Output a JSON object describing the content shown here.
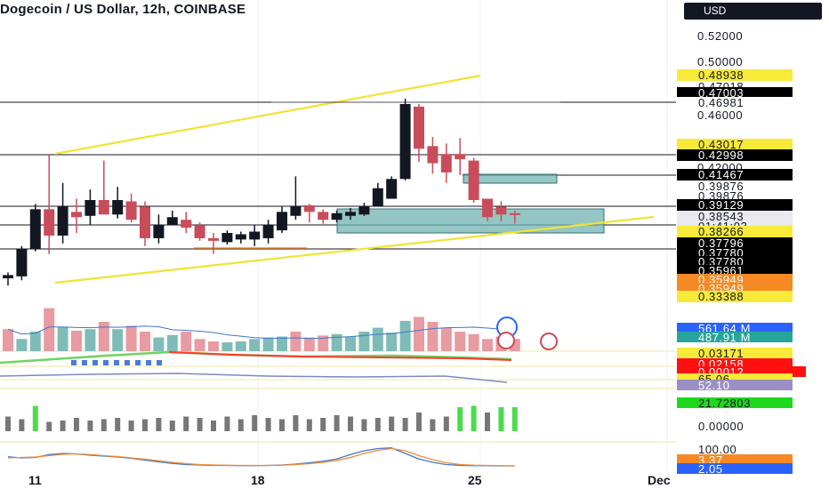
{
  "header": {
    "title": "Dogecoin / US Dollar, 12h, COINBASE",
    "currency": "USD"
  },
  "colors": {
    "up": "#131722",
    "down": "#c94c5a",
    "trendline": "#f2e234",
    "zone": "#6fb3b0",
    "volume_up": "#7fbcb8",
    "volume_down": "#e89ba2",
    "ma_line": "#3f78c9",
    "rsi_line": "#7a8bc4",
    "stoch_k": "#3f78c9",
    "stoch_d": "#f08a33",
    "bars_green": "#4cdb4c"
  },
  "chart_data": {
    "type": "candlestick",
    "title": "Dogecoin / US Dollar, 12h, COINBASE",
    "ylim": [
      0.325,
      0.535
    ],
    "y_ticks": [
      "0.52000",
      "0.50000",
      "0.46000",
      "0.42000"
    ],
    "x_ticks": [
      "11",
      "18",
      "25",
      "Dec"
    ],
    "candles": [
      {
        "o": 0.3355,
        "h": 0.34,
        "l": 0.33,
        "c": 0.338
      },
      {
        "o": 0.337,
        "h": 0.36,
        "l": 0.334,
        "c": 0.358
      },
      {
        "o": 0.358,
        "h": 0.392,
        "l": 0.356,
        "c": 0.388
      },
      {
        "o": 0.388,
        "h": 0.43,
        "l": 0.354,
        "c": 0.368
      },
      {
        "o": 0.368,
        "h": 0.408,
        "l": 0.362,
        "c": 0.39
      },
      {
        "o": 0.386,
        "h": 0.396,
        "l": 0.37,
        "c": 0.382
      },
      {
        "o": 0.383,
        "h": 0.403,
        "l": 0.376,
        "c": 0.395
      },
      {
        "o": 0.395,
        "h": 0.425,
        "l": 0.384,
        "c": 0.384
      },
      {
        "o": 0.384,
        "h": 0.405,
        "l": 0.381,
        "c": 0.395
      },
      {
        "o": 0.394,
        "h": 0.4,
        "l": 0.378,
        "c": 0.38
      },
      {
        "o": 0.39,
        "h": 0.394,
        "l": 0.36,
        "c": 0.366
      },
      {
        "o": 0.366,
        "h": 0.384,
        "l": 0.362,
        "c": 0.376
      },
      {
        "o": 0.376,
        "h": 0.387,
        "l": 0.376,
        "c": 0.382
      },
      {
        "o": 0.38,
        "h": 0.386,
        "l": 0.37,
        "c": 0.374
      },
      {
        "o": 0.376,
        "h": 0.378,
        "l": 0.364,
        "c": 0.366
      },
      {
        "o": 0.366,
        "h": 0.37,
        "l": 0.354,
        "c": 0.364
      },
      {
        "o": 0.363,
        "h": 0.372,
        "l": 0.361,
        "c": 0.37
      },
      {
        "o": 0.365,
        "h": 0.371,
        "l": 0.362,
        "c": 0.369
      },
      {
        "o": 0.365,
        "h": 0.376,
        "l": 0.36,
        "c": 0.371
      },
      {
        "o": 0.366,
        "h": 0.38,
        "l": 0.362,
        "c": 0.376
      },
      {
        "o": 0.372,
        "h": 0.39,
        "l": 0.37,
        "c": 0.386
      },
      {
        "o": 0.383,
        "h": 0.413,
        "l": 0.38,
        "c": 0.39
      },
      {
        "o": 0.391,
        "h": 0.392,
        "l": 0.378,
        "c": 0.386
      },
      {
        "o": 0.386,
        "h": 0.388,
        "l": 0.377,
        "c": 0.38
      },
      {
        "o": 0.38,
        "h": 0.387,
        "l": 0.378,
        "c": 0.385
      },
      {
        "o": 0.383,
        "h": 0.389,
        "l": 0.38,
        "c": 0.386
      },
      {
        "o": 0.384,
        "h": 0.393,
        "l": 0.383,
        "c": 0.39
      },
      {
        "o": 0.39,
        "h": 0.408,
        "l": 0.39,
        "c": 0.404
      },
      {
        "o": 0.396,
        "h": 0.413,
        "l": 0.396,
        "c": 0.411
      },
      {
        "o": 0.411,
        "h": 0.472,
        "l": 0.41,
        "c": 0.468
      },
      {
        "o": 0.466,
        "h": 0.468,
        "l": 0.424,
        "c": 0.434
      },
      {
        "o": 0.436,
        "h": 0.443,
        "l": 0.415,
        "c": 0.423
      },
      {
        "o": 0.43,
        "h": 0.438,
        "l": 0.408,
        "c": 0.416
      },
      {
        "o": 0.43,
        "h": 0.442,
        "l": 0.414,
        "c": 0.426
      },
      {
        "o": 0.425,
        "h": 0.427,
        "l": 0.393,
        "c": 0.395
      },
      {
        "o": 0.396,
        "h": 0.396,
        "l": 0.379,
        "c": 0.382
      },
      {
        "o": 0.39,
        "h": 0.394,
        "l": 0.379,
        "c": 0.384
      },
      {
        "o": 0.385,
        "h": 0.387,
        "l": 0.377,
        "c": 0.384
      }
    ],
    "volume": [
      0.45,
      0.25,
      0.4,
      0.88,
      0.5,
      0.42,
      0.45,
      0.6,
      0.45,
      0.52,
      0.4,
      0.28,
      0.33,
      0.4,
      0.25,
      0.2,
      0.18,
      0.2,
      0.25,
      0.28,
      0.3,
      0.4,
      0.28,
      0.32,
      0.35,
      0.3,
      0.4,
      0.48,
      0.38,
      0.62,
      0.7,
      0.6,
      0.48,
      0.4,
      0.35,
      0.25,
      0.3,
      0.25
    ],
    "volume_direction": [
      "d",
      "u",
      "u",
      "d",
      "u",
      "d",
      "u",
      "d",
      "u",
      "d",
      "d",
      "u",
      "u",
      "d",
      "d",
      "d",
      "u",
      "u",
      "u",
      "u",
      "u",
      "d",
      "d",
      "d",
      "u",
      "u",
      "u",
      "u",
      "u",
      "u",
      "d",
      "d",
      "d",
      "d",
      "d",
      "d",
      "d",
      "d"
    ],
    "histogram": [
      0,
      0,
      0,
      0,
      0,
      0,
      0,
      0,
      0,
      0,
      0,
      0,
      0,
      0,
      0,
      0,
      0,
      0,
      0,
      0,
      0,
      0,
      0,
      0,
      0,
      0,
      0,
      0,
      0,
      0,
      0,
      0,
      0,
      0,
      0,
      0,
      0,
      0
    ],
    "histogram_x_slots": [
      1,
      3,
      5,
      7,
      9,
      11,
      13,
      15,
      17,
      19,
      21,
      23,
      25,
      27,
      29,
      31,
      33,
      35,
      37,
      39,
      41,
      43,
      45,
      47,
      49,
      51,
      53,
      55,
      57,
      59,
      61,
      63,
      65,
      67,
      69,
      71,
      73,
      75
    ],
    "histogram_vals": [
      0.55,
      0.45,
      0.95,
      0.35,
      0.4,
      0.5,
      0.4,
      0.45,
      0.5,
      0.4,
      0.45,
      0.5,
      0.4,
      0.55,
      0.5,
      0.4,
      0.55,
      0.45,
      0.6,
      0.5,
      0.45,
      0.6,
      0.45,
      0.5,
      0.6,
      0.55,
      0.45,
      0.5,
      0.55,
      0.5,
      0.7,
      0.45,
      0.55,
      0.9,
      0.95,
      0.7,
      0.9,
      0.9
    ],
    "histogram_green": [
      false,
      false,
      true,
      false,
      false,
      false,
      false,
      false,
      false,
      false,
      false,
      false,
      false,
      false,
      false,
      false,
      false,
      false,
      false,
      false,
      false,
      false,
      false,
      false,
      false,
      false,
      false,
      false,
      false,
      false,
      false,
      false,
      false,
      true,
      true,
      false,
      true,
      true
    ],
    "stoch_k": [
      45,
      40,
      42,
      55,
      60,
      58,
      52,
      48,
      44,
      38,
      30,
      22,
      15,
      10,
      8,
      6,
      6,
      5,
      5,
      6,
      8,
      12,
      18,
      25,
      35,
      55,
      72,
      82,
      85,
      60,
      35,
      20,
      10,
      6,
      5,
      5,
      4,
      4
    ],
    "stoch_d": [
      40,
      42,
      44,
      50,
      56,
      58,
      55,
      50,
      46,
      40,
      34,
      27,
      20,
      14,
      10,
      8,
      7,
      6,
      6,
      6,
      7,
      10,
      14,
      20,
      28,
      42,
      60,
      74,
      82,
      72,
      50,
      32,
      18,
      10,
      7,
      6,
      5,
      4
    ]
  },
  "price_tags": [
    {
      "text": "0.48938",
      "bg": "#f7ea38",
      "fg": "#131722",
      "y": 0.48938
    },
    {
      "text": "0.47018",
      "bg": "#ffffff",
      "fg": "#131722",
      "y": 0.47018
    },
    {
      "text": "0.47003",
      "bg": "#000000",
      "fg": "#ffffff",
      "y": 0.47003
    },
    {
      "text": "0.46981",
      "bg": "#ffffff",
      "fg": "#131722",
      "y": 0.46981
    },
    {
      "text": "0.43017",
      "bg": "#f7ea38",
      "fg": "#131722",
      "y": 0.43017
    },
    {
      "text": "0.42998",
      "bg": "#000000",
      "fg": "#ffffff",
      "y": 0.42998
    },
    {
      "text": "0.41467",
      "bg": "#000000",
      "fg": "#ffffff",
      "y": 0.41467
    },
    {
      "text": "0.39876",
      "bg": "#ffffff",
      "fg": "#131722",
      "y": 0.39876
    },
    {
      "text": "0.39876",
      "bg": "#ffffff",
      "fg": "#131722",
      "y": 0.39876
    },
    {
      "text": "0.39129",
      "bg": "#000000",
      "fg": "#ffffff",
      "y": 0.39129
    },
    {
      "text": "0.38543",
      "bg": "#e9e9ee",
      "fg": "#131722",
      "y": 0.38543
    },
    {
      "text": "01:41:03",
      "bg": "#e9e9ee",
      "fg": "#131722",
      "y": 0.38543
    },
    {
      "text": "0.38266",
      "bg": "#f7ea38",
      "fg": "#131722",
      "y": 0.38266
    },
    {
      "text": "0.37796",
      "bg": "#000000",
      "fg": "#ffffff",
      "y": 0.37796
    },
    {
      "text": "0.37780",
      "bg": "#000000",
      "fg": "#ffffff",
      "y": 0.3778
    },
    {
      "text": "0.37780",
      "bg": "#000000",
      "fg": "#ffffff",
      "y": 0.3778
    },
    {
      "text": "0.35961",
      "bg": "#000000",
      "fg": "#ffffff",
      "y": 0.35961
    },
    {
      "text": "0.35949",
      "bg": "#f58a25",
      "fg": "#ffffff",
      "y": 0.35949
    },
    {
      "text": "0.35949",
      "bg": "#f58a25",
      "fg": "#ffffff",
      "y": 0.35949
    },
    {
      "text": "0.33388",
      "bg": "#f7ea38",
      "fg": "#131722",
      "y": 0.33388
    }
  ],
  "indicator_tags": [
    {
      "text": "561.64 M",
      "bg": "#2962ff",
      "fg": "#ffffff"
    },
    {
      "text": "487.91 M",
      "bg": "#26a69a",
      "fg": "#ffffff"
    },
    {
      "text": "0.03171",
      "bg": "#f7ea38",
      "fg": "#131722"
    },
    {
      "text": "0.02158",
      "bg": "#ff1010",
      "fg": "#ffffff"
    },
    {
      "text": "0.00012",
      "bg": "#ff1010",
      "fg": "#ffffff"
    },
    {
      "text": "65.06",
      "bg": "#f7ea38",
      "fg": "#131722"
    },
    {
      "text": "52.10",
      "bg": "#9b8fc4",
      "fg": "#ffffff"
    },
    {
      "text": "21.72803",
      "bg": "#1ed81e",
      "fg": "#131722"
    },
    {
      "text": "0.00000",
      "bg": "",
      "fg": "#131722"
    },
    {
      "text": "100.00",
      "bg": "",
      "fg": "#131722"
    },
    {
      "text": "3.37",
      "bg": "#f58a25",
      "fg": "#ffffff"
    },
    {
      "text": "2.05",
      "bg": "#2962ff",
      "fg": "#ffffff"
    }
  ]
}
